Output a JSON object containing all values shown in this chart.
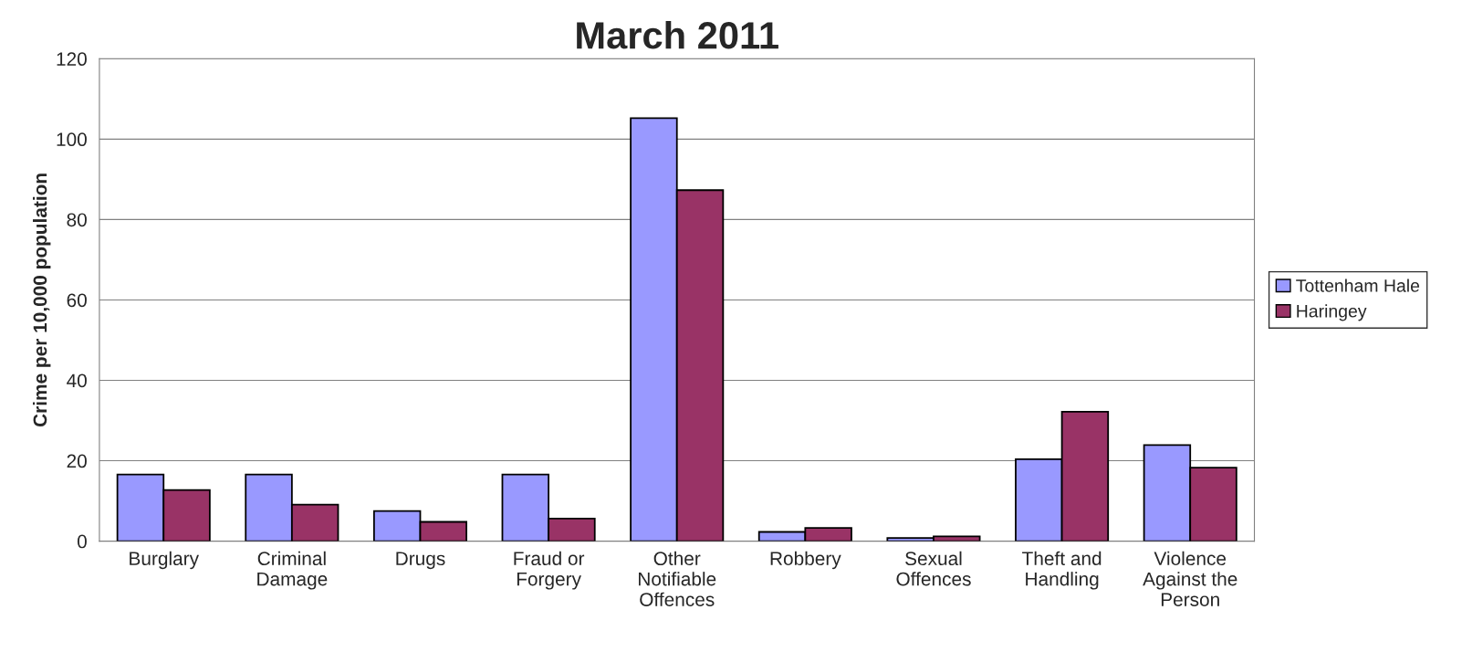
{
  "chart_data": {
    "type": "bar",
    "title": "March 2011",
    "ylabel": "Crime per 10,000 population",
    "categories": [
      "Burglary",
      "Criminal\nDamage",
      "Drugs",
      "Fraud or\nForgery",
      "Other\nNotifiable\nOffences",
      "Robbery",
      "Sexual\nOffences",
      "Theft and\nHandling",
      "Violence\nAgainst the\nPerson"
    ],
    "series": [
      {
        "name": "Tottenham Hale",
        "color": "#9999ff",
        "values": [
          16.6,
          16.6,
          7.5,
          16.6,
          105.2,
          2.3,
          0.8,
          20.4,
          23.9
        ]
      },
      {
        "name": "Haringey",
        "color": "#993366",
        "values": [
          12.7,
          9.1,
          4.8,
          5.6,
          87.3,
          3.3,
          1.2,
          32.2,
          18.3
        ]
      }
    ],
    "ylim": [
      0,
      120
    ],
    "yticks": [
      0,
      20,
      40,
      60,
      80,
      100,
      120
    ],
    "grid": "y",
    "legend": "right"
  }
}
